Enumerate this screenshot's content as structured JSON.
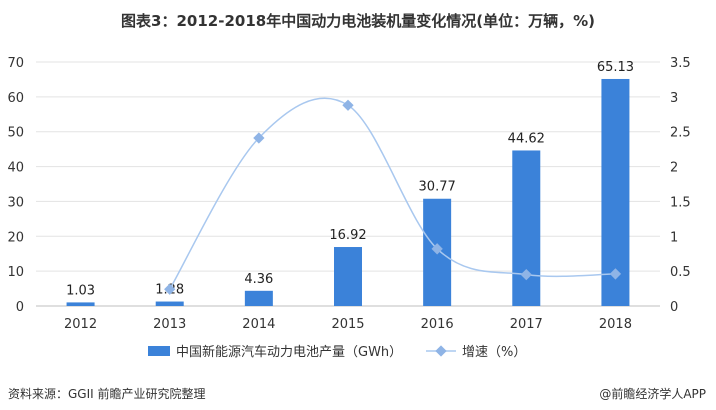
{
  "title": "图表3：2012-2018年中国动力电池装机量变化情况(单位：万辆，%)",
  "source": "资料来源：GGII 前瞻产业研究院整理",
  "brand": "@前瞻经济学人APP",
  "colors": {
    "bar": "#3b82d9",
    "line": "#a9c8ef",
    "marker": "#8fb4e6",
    "grid": "#e3e3e3"
  },
  "chart_data": {
    "type": "bar",
    "categories": [
      "2012",
      "2013",
      "2014",
      "2015",
      "2016",
      "2017",
      "2018"
    ],
    "series": [
      {
        "name": "中国新能源汽车动力电池产量（GWh）",
        "type": "bar",
        "axis": "left",
        "values": [
          1.03,
          1.28,
          4.36,
          16.92,
          30.77,
          44.62,
          65.13
        ],
        "labels": [
          "1.03",
          "1.28",
          "4.36",
          "16.92",
          "30.77",
          "44.62",
          "65.13"
        ]
      },
      {
        "name": "增速（%）",
        "type": "line",
        "axis": "right",
        "values": [
          null,
          0.24,
          2.41,
          2.88,
          0.82,
          0.45,
          0.46
        ]
      }
    ],
    "y_left": {
      "min": 0,
      "max": 70,
      "ticks": [
        "0",
        "10",
        "20",
        "30",
        "40",
        "50",
        "60",
        "70"
      ]
    },
    "y_right": {
      "min": 0,
      "max": 3.5,
      "ticks": [
        "0",
        "0.5",
        "1",
        "1.5",
        "2",
        "2.5",
        "3",
        "3.5"
      ]
    },
    "grid": "horizontal",
    "legend_position": "bottom"
  }
}
